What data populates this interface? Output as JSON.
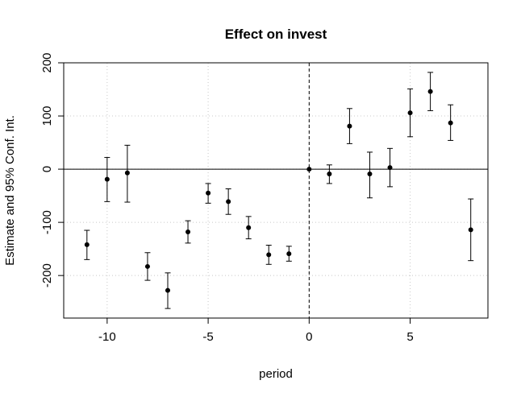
{
  "chart_data": {
    "type": "scatter",
    "title": "Effect on invest",
    "xlabel": "period",
    "ylabel": "Estimate and 95% Conf. Int.",
    "xlim": [
      -12.15,
      8.85
    ],
    "ylim": [
      -280,
      200
    ],
    "x_ticks": [
      -10,
      -5,
      0,
      5
    ],
    "y_ticks": [
      -200,
      -100,
      0,
      100,
      200
    ],
    "grid": true,
    "legend": "none",
    "reference_lines": {
      "horizontal_y": 0,
      "vertical_x": 0
    },
    "series": [
      {
        "x": [
          -11,
          -10,
          -9,
          -8,
          -7,
          -6,
          -5,
          -4,
          -3,
          -2,
          -1,
          0,
          1,
          2,
          3,
          4,
          5,
          6,
          7,
          8
        ],
        "y": [
          -142,
          -19,
          -7,
          -183,
          -228,
          -118,
          -45,
          -61,
          -110,
          -161,
          -159,
          0,
          -9,
          81,
          -9,
          3,
          106,
          146,
          87,
          -114
        ],
        "lower": [
          -170,
          -61,
          -62,
          -209,
          -262,
          -139,
          -64,
          -85,
          -131,
          -179,
          -173,
          0,
          -27,
          48,
          -54,
          -33,
          61,
          110,
          54,
          -172
        ],
        "upper": [
          -115,
          22,
          45,
          -157,
          -195,
          -97,
          -27,
          -37,
          -89,
          -143,
          -145,
          0,
          8,
          114,
          32,
          39,
          151,
          182,
          121,
          -56
        ]
      }
    ],
    "colors": {
      "points": "#000000",
      "grid": "#c8c8c8"
    }
  }
}
